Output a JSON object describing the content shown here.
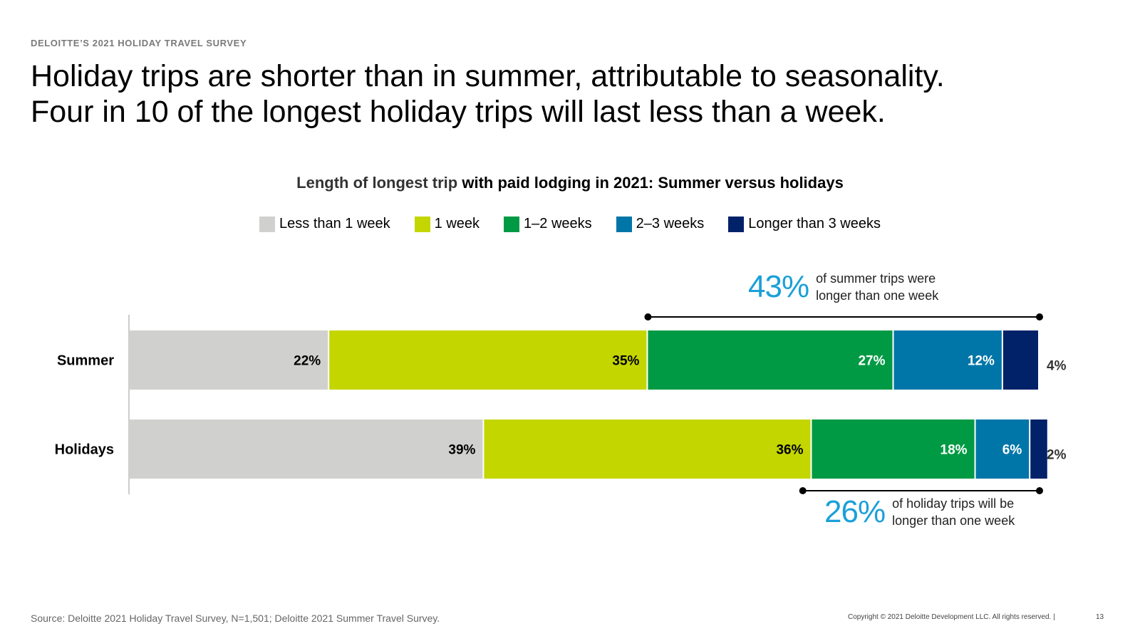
{
  "header": {
    "kicker": "DELOITTE’S 2021 HOLIDAY TRAVEL SURVEY",
    "headline_line1": "Holiday trips are shorter than in summer, attributable to seasonality.",
    "headline_line2": "Four in 10 of the longest holiday trips will last less than a week."
  },
  "chart_data": {
    "type": "bar",
    "orientation": "horizontal-stacked-100",
    "title_part1": "Length of longest trip",
    "title_part2": " with paid lodging in 2021: Summer versus holidays",
    "xlim": [
      0,
      100
    ],
    "grid": false,
    "legend_position": "top-center",
    "categories": [
      "Summer",
      "Holidays"
    ],
    "series": [
      {
        "name": "Less than 1 week",
        "color": "#d0d0ce",
        "values": [
          22,
          39
        ],
        "labels": [
          "22%",
          "39%"
        ],
        "label_color": "#000000"
      },
      {
        "name": "1 week",
        "color": "#c4d600",
        "values": [
          35,
          36
        ],
        "labels": [
          "35%",
          "36%"
        ],
        "label_color": "#000000"
      },
      {
        "name": "1–2 weeks",
        "color": "#009a44",
        "values": [
          27,
          18
        ],
        "labels": [
          "27%",
          "18%"
        ],
        "label_color": "#ffffff"
      },
      {
        "name": "2–3 weeks",
        "color": "#0076a8",
        "values": [
          12,
          6
        ],
        "labels": [
          "12%",
          "6%"
        ],
        "label_color": "#ffffff"
      },
      {
        "name": "Longer than 3 weeks",
        "color": "#012169",
        "values": [
          4,
          2
        ],
        "labels": [
          "4%",
          "2%"
        ],
        "label_color": "#333333"
      }
    ],
    "annotations": [
      {
        "row": "Summer",
        "value": "43%",
        "text_line1": "of summer trips were",
        "text_line2": "longer than one week",
        "from_pct": 57,
        "to_pct": 100
      },
      {
        "row": "Holidays",
        "value": "26%",
        "text_line1": "of holiday trips will be",
        "text_line2": "longer than one week",
        "from_pct": 74,
        "to_pct": 100
      }
    ]
  },
  "footer": {
    "source": "Source: Deloitte 2021 Holiday Travel Survey, N=1,501; Deloitte 2021 Summer Travel Survey.",
    "copyright": "Copyright © 2021 Deloitte Development LLC. All rights reserved.  |",
    "page_number": "13"
  }
}
